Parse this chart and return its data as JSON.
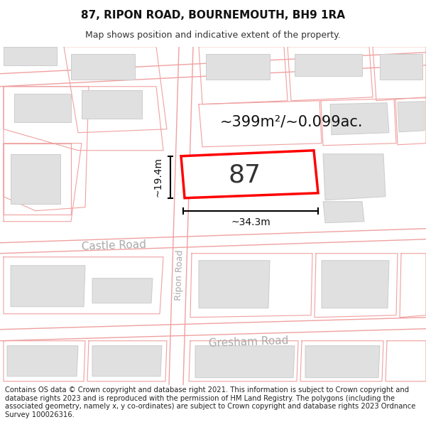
{
  "title_line1": "87, RIPON ROAD, BOURNEMOUTH, BH9 1RA",
  "title_line2": "Map shows position and indicative extent of the property.",
  "footer_text": "Contains OS data © Crown copyright and database right 2021. This information is subject to Crown copyright and database rights 2023 and is reproduced with the permission of HM Land Registry. The polygons (including the associated geometry, namely x, y co-ordinates) are subject to Crown copyright and database rights 2023 Ordnance Survey 100026316.",
  "area_label": "~399m²/~0.099ac.",
  "width_label": "~34.3m",
  "height_label": "~19.4m",
  "number_label": "87",
  "map_bg": "#f8f8f8",
  "road_outline_color": "#f0a0a0",
  "road_label_color": "#aaaaaa",
  "building_fill": "#e0e0e0",
  "building_stroke": "#cccccc",
  "highlight_color": "#ff0000",
  "title_fontsize": 11,
  "subtitle_fontsize": 9,
  "footer_fontsize": 7.2,
  "number_fontsize": 26,
  "area_fontsize": 15,
  "measure_fontsize": 10
}
